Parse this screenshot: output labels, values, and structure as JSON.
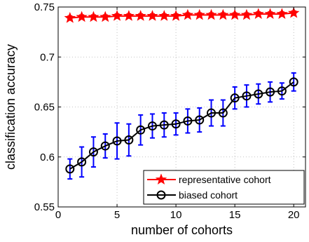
{
  "chart_data": {
    "type": "line",
    "title": "",
    "xlabel": "number of cohorts",
    "ylabel": "classification accuracy",
    "xlim": [
      0,
      21
    ],
    "ylim": [
      0.55,
      0.75
    ],
    "xticks": [
      0,
      5,
      10,
      15,
      20
    ],
    "yticks": [
      0.55,
      0.6,
      0.65,
      0.7,
      0.75
    ],
    "xtick_labels": [
      "0",
      "5",
      "10",
      "15",
      "20"
    ],
    "ytick_labels": [
      "0.55",
      "0.6",
      "0.65",
      "0.7",
      "0.75"
    ],
    "grid": true,
    "legend_position": "bottom-right",
    "x": [
      1,
      2,
      3,
      4,
      5,
      6,
      7,
      8,
      9,
      10,
      11,
      12,
      13,
      14,
      15,
      16,
      17,
      18,
      19,
      20
    ],
    "series": [
      {
        "name": "representative cohort",
        "color": "#ff0000",
        "marker": "star",
        "values": [
          0.739,
          0.74,
          0.74,
          0.74,
          0.741,
          0.741,
          0.741,
          0.741,
          0.741,
          0.741,
          0.742,
          0.742,
          0.742,
          0.742,
          0.742,
          0.742,
          0.743,
          0.743,
          0.743,
          0.744
        ],
        "errors": [
          0.002,
          0.002,
          0.002,
          0.002,
          0.002,
          0.002,
          0.002,
          0.002,
          0.002,
          0.002,
          0.002,
          0.002,
          0.002,
          0.002,
          0.002,
          0.002,
          0.002,
          0.002,
          0.002,
          0.002
        ]
      },
      {
        "name": "biased cohort",
        "color": "#000000",
        "error_color": "#0000ff",
        "marker": "circle",
        "values": [
          0.588,
          0.595,
          0.605,
          0.611,
          0.616,
          0.617,
          0.627,
          0.631,
          0.632,
          0.633,
          0.636,
          0.637,
          0.644,
          0.644,
          0.659,
          0.661,
          0.663,
          0.665,
          0.666,
          0.675
        ],
        "errors": [
          0.01,
          0.015,
          0.015,
          0.012,
          0.018,
          0.016,
          0.015,
          0.012,
          0.012,
          0.011,
          0.012,
          0.012,
          0.013,
          0.013,
          0.011,
          0.011,
          0.01,
          0.01,
          0.008,
          0.009
        ]
      }
    ]
  }
}
